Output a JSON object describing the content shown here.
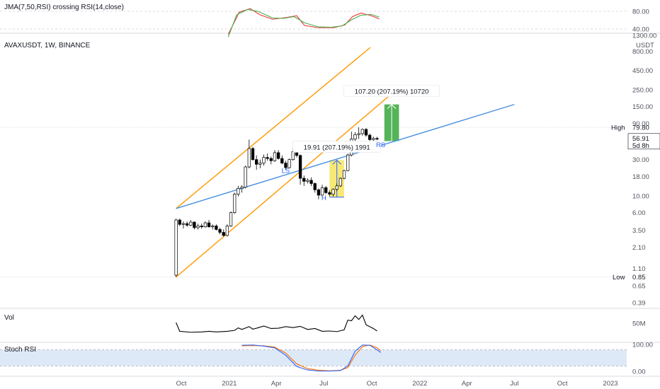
{
  "chart_data": {
    "type": "candlestick",
    "symbol_header": "AVAXUSDT, 1W, BINANCE",
    "price_scale": "log",
    "currency_label": "USDT",
    "price_ticks": [
      "1300.00",
      "800.00",
      "450.00",
      "250.00",
      "150.00",
      "90.00",
      "50.00",
      "30.00",
      "18.00",
      "10.00",
      "6.00",
      "3.50",
      "2.10",
      "1.10",
      "0.65",
      "0.39"
    ],
    "price_tick_values": [
      1300,
      800,
      450,
      250,
      150,
      90,
      50,
      30,
      18,
      10,
      6,
      3.5,
      2.1,
      1.1,
      0.65,
      0.39
    ],
    "x_ticks": [
      "Oct",
      "2021",
      "Apr",
      "Jul",
      "Oct",
      "2022",
      "Apr",
      "Jul",
      "Oct",
      "2023"
    ],
    "x_tick_dates": [
      "2020-10-01",
      "2021-01-01",
      "2021-04-01",
      "2021-07-01",
      "2021-10-01",
      "2022-01-01",
      "2022-04-01",
      "2022-07-01",
      "2022-10-01",
      "2023-01-01"
    ],
    "high": {
      "label": "High",
      "value": "79.80"
    },
    "low": {
      "label": "Low",
      "value": "0.85"
    },
    "last_price": {
      "value": "56.91",
      "countdown": "5d 8h",
      "color": "#131722"
    },
    "annotations": {
      "measure_1": {
        "text": "19.91 (207.19%) 1991",
        "color": "#f5e24a"
      },
      "measure_2": {
        "text": "107.20 (207.19%) 10720",
        "color": "#4caf50"
      },
      "labels": [
        "LS",
        "H",
        "RS"
      ]
    },
    "candles": [
      {
        "date": "2020-09-21",
        "o": 0.9,
        "h": 5.0,
        "l": 0.85,
        "c": 4.8
      },
      {
        "date": "2020-09-28",
        "o": 4.8,
        "h": 5.0,
        "l": 4.0,
        "c": 4.2
      },
      {
        "date": "2020-10-05",
        "o": 4.2,
        "h": 4.6,
        "l": 3.7,
        "c": 4.3
      },
      {
        "date": "2020-10-12",
        "o": 4.3,
        "h": 4.6,
        "l": 3.9,
        "c": 4.1
      },
      {
        "date": "2020-10-19",
        "o": 4.1,
        "h": 4.8,
        "l": 4.0,
        "c": 4.5
      },
      {
        "date": "2020-10-26",
        "o": 4.5,
        "h": 4.6,
        "l": 3.6,
        "c": 3.8
      },
      {
        "date": "2020-11-02",
        "o": 3.8,
        "h": 4.3,
        "l": 3.6,
        "c": 4.0
      },
      {
        "date": "2020-11-09",
        "o": 4.0,
        "h": 4.3,
        "l": 3.7,
        "c": 3.9
      },
      {
        "date": "2020-11-16",
        "o": 3.9,
        "h": 4.6,
        "l": 3.8,
        "c": 4.4
      },
      {
        "date": "2020-11-23",
        "o": 4.4,
        "h": 4.8,
        "l": 3.8,
        "c": 3.9
      },
      {
        "date": "2020-11-30",
        "o": 3.9,
        "h": 4.2,
        "l": 3.6,
        "c": 4.0
      },
      {
        "date": "2020-12-07",
        "o": 4.0,
        "h": 4.2,
        "l": 3.5,
        "c": 3.6
      },
      {
        "date": "2020-12-14",
        "o": 3.6,
        "h": 3.8,
        "l": 3.1,
        "c": 3.3
      },
      {
        "date": "2020-12-21",
        "o": 3.3,
        "h": 3.6,
        "l": 2.9,
        "c": 3.0
      },
      {
        "date": "2020-12-28",
        "o": 3.0,
        "h": 4.2,
        "l": 2.9,
        "c": 4.0
      },
      {
        "date": "2021-01-04",
        "o": 4.0,
        "h": 6.2,
        "l": 3.9,
        "c": 6.0
      },
      {
        "date": "2021-01-11",
        "o": 6.0,
        "h": 11.0,
        "l": 5.8,
        "c": 10.5
      },
      {
        "date": "2021-01-18",
        "o": 10.5,
        "h": 13.5,
        "l": 9.8,
        "c": 12.5
      },
      {
        "date": "2021-01-25",
        "o": 12.5,
        "h": 13.8,
        "l": 11.0,
        "c": 13.0
      },
      {
        "date": "2021-02-01",
        "o": 13.0,
        "h": 25.0,
        "l": 12.5,
        "c": 24.0
      },
      {
        "date": "2021-02-08",
        "o": 24.0,
        "h": 55.0,
        "l": 23.0,
        "c": 42.0
      },
      {
        "date": "2021-02-15",
        "o": 42.0,
        "h": 44.0,
        "l": 29.0,
        "c": 30.0
      },
      {
        "date": "2021-02-22",
        "o": 30.0,
        "h": 34.0,
        "l": 22.0,
        "c": 26.0
      },
      {
        "date": "2021-03-01",
        "o": 26.0,
        "h": 30.0,
        "l": 23.0,
        "c": 27.0
      },
      {
        "date": "2021-03-08",
        "o": 27.0,
        "h": 35.0,
        "l": 25.0,
        "c": 32.0
      },
      {
        "date": "2021-03-15",
        "o": 32.0,
        "h": 36.0,
        "l": 29.0,
        "c": 31.0
      },
      {
        "date": "2021-03-22",
        "o": 31.0,
        "h": 33.0,
        "l": 26.0,
        "c": 29.0
      },
      {
        "date": "2021-03-29",
        "o": 29.0,
        "h": 40.0,
        "l": 28.0,
        "c": 37.0
      },
      {
        "date": "2021-04-05",
        "o": 37.0,
        "h": 40.0,
        "l": 30.0,
        "c": 31.0
      },
      {
        "date": "2021-04-12",
        "o": 31.0,
        "h": 34.0,
        "l": 26.0,
        "c": 27.0
      },
      {
        "date": "2021-04-19",
        "o": 27.0,
        "h": 29.0,
        "l": 22.0,
        "c": 23.5
      },
      {
        "date": "2021-04-26",
        "o": 23.5,
        "h": 31.0,
        "l": 23.0,
        "c": 30.0
      },
      {
        "date": "2021-05-03",
        "o": 30.0,
        "h": 42.0,
        "l": 29.0,
        "c": 38.0
      },
      {
        "date": "2021-05-10",
        "o": 38.0,
        "h": 42.0,
        "l": 32.0,
        "c": 34.0
      },
      {
        "date": "2021-05-17",
        "o": 34.0,
        "h": 35.0,
        "l": 14.0,
        "c": 17.0
      },
      {
        "date": "2021-05-24",
        "o": 17.0,
        "h": 18.5,
        "l": 13.5,
        "c": 15.5
      },
      {
        "date": "2021-05-31",
        "o": 15.5,
        "h": 17.0,
        "l": 14.5,
        "c": 16.0
      },
      {
        "date": "2021-06-07",
        "o": 16.0,
        "h": 17.5,
        "l": 13.5,
        "c": 14.5
      },
      {
        "date": "2021-06-14",
        "o": 14.5,
        "h": 15.0,
        "l": 11.0,
        "c": 12.0
      },
      {
        "date": "2021-06-21",
        "o": 12.0,
        "h": 12.5,
        "l": 9.0,
        "c": 10.2
      },
      {
        "date": "2021-06-28",
        "o": 10.2,
        "h": 14.0,
        "l": 9.5,
        "c": 12.8
      },
      {
        "date": "2021-07-05",
        "o": 12.8,
        "h": 13.5,
        "l": 10.5,
        "c": 11.0
      },
      {
        "date": "2021-07-12",
        "o": 11.0,
        "h": 11.8,
        "l": 9.8,
        "c": 10.5
      },
      {
        "date": "2021-07-19",
        "o": 10.5,
        "h": 12.5,
        "l": 9.8,
        "c": 12.2
      },
      {
        "date": "2021-07-26",
        "o": 12.2,
        "h": 14.5,
        "l": 11.5,
        "c": 13.5
      },
      {
        "date": "2021-08-02",
        "o": 13.5,
        "h": 17.5,
        "l": 13.0,
        "c": 17.0
      },
      {
        "date": "2021-08-09",
        "o": 17.0,
        "h": 22.0,
        "l": 16.5,
        "c": 21.5
      },
      {
        "date": "2021-08-16",
        "o": 21.5,
        "h": 36.0,
        "l": 21.0,
        "c": 34.5
      },
      {
        "date": "2021-08-23",
        "o": 34.5,
        "h": 70.0,
        "l": 33.0,
        "c": 56.0
      },
      {
        "date": "2021-08-30",
        "o": 56.0,
        "h": 69.0,
        "l": 50.0,
        "c": 64.0
      },
      {
        "date": "2021-09-06",
        "o": 64.0,
        "h": 79.8,
        "l": 56.0,
        "c": 66.0
      },
      {
        "date": "2021-09-13",
        "o": 66.0,
        "h": 77.0,
        "l": 62.0,
        "c": 75.0
      },
      {
        "date": "2021-09-20",
        "o": 75.0,
        "h": 78.0,
        "l": 60.0,
        "c": 63.0
      },
      {
        "date": "2021-09-27",
        "o": 63.0,
        "h": 66.0,
        "l": 52.0,
        "c": 55.0
      },
      {
        "date": "2021-10-04",
        "o": 55.0,
        "h": 60.0,
        "l": 53.0,
        "c": 57.0
      },
      {
        "date": "2021-10-11",
        "o": 57.0,
        "h": 60.0,
        "l": 54.0,
        "c": 56.91
      }
    ],
    "channel_lower": [
      {
        "date": "2020-09-21",
        "price": 0.85
      },
      {
        "date": "2021-11-20",
        "price": 260.0
      }
    ],
    "channel_upper": [
      {
        "date": "2020-09-21",
        "price": 6.8
      },
      {
        "date": "2021-09-28",
        "price": 900.0
      }
    ],
    "neckline": [
      {
        "date": "2020-09-21",
        "price": 6.8
      },
      {
        "date": "2022-07-01",
        "price": 160.0
      }
    ],
    "measure_1_box": {
      "date_start": "2021-07-12",
      "date_end": "2021-08-09",
      "price_low": 9.6,
      "price_high": 29.5
    },
    "measure_2_box": {
      "date_start": "2021-10-25",
      "date_end": "2021-11-22",
      "price_low": 52.0,
      "price_high": 160.0
    },
    "label_positions": {
      "LS": {
        "date": "2021-04-19",
        "price": 20.0
      },
      "H": {
        "date": "2021-07-01",
        "price": 8.8
      },
      "RS": {
        "date": "2021-10-18",
        "price": 44.0
      }
    },
    "jma_rsi": {
      "title": "JMA(7,50,RSI) crossing RSI(14,close)",
      "ticks": [
        "80.00",
        "40.00"
      ],
      "tick_values": [
        80,
        40
      ],
      "jma": [
        {
          "date": "2020-12-30",
          "v": 22
        },
        {
          "date": "2021-01-15",
          "v": 72
        },
        {
          "date": "2021-02-05",
          "v": 84
        },
        {
          "date": "2021-02-25",
          "v": 80
        },
        {
          "date": "2021-03-25",
          "v": 65
        },
        {
          "date": "2021-04-15",
          "v": 64
        },
        {
          "date": "2021-05-05",
          "v": 68
        },
        {
          "date": "2021-05-25",
          "v": 54
        },
        {
          "date": "2021-06-20",
          "v": 45
        },
        {
          "date": "2021-07-15",
          "v": 44
        },
        {
          "date": "2021-08-05",
          "v": 47
        },
        {
          "date": "2021-08-25",
          "v": 62
        },
        {
          "date": "2021-09-10",
          "v": 71
        },
        {
          "date": "2021-09-30",
          "v": 73
        },
        {
          "date": "2021-10-15",
          "v": 67
        }
      ],
      "rsi": [
        {
          "date": "2020-12-30",
          "v": 28
        },
        {
          "date": "2021-01-20",
          "v": 78
        },
        {
          "date": "2021-02-10",
          "v": 86
        },
        {
          "date": "2021-03-01",
          "v": 72
        },
        {
          "date": "2021-03-25",
          "v": 62
        },
        {
          "date": "2021-04-20",
          "v": 66
        },
        {
          "date": "2021-05-10",
          "v": 70
        },
        {
          "date": "2021-05-25",
          "v": 48
        },
        {
          "date": "2021-06-20",
          "v": 43
        },
        {
          "date": "2021-07-20",
          "v": 43
        },
        {
          "date": "2021-08-10",
          "v": 49
        },
        {
          "date": "2021-08-25",
          "v": 68
        },
        {
          "date": "2021-09-10",
          "v": 76
        },
        {
          "date": "2021-09-30",
          "v": 70
        },
        {
          "date": "2021-10-15",
          "v": 63
        }
      ],
      "jma_color": "#4caf50",
      "rsi_color": "#e53935"
    },
    "volume": {
      "title": "Vol",
      "ticks": [
        "50M"
      ],
      "tick_values": [
        50
      ],
      "color": "#000000",
      "values": [
        {
          "date": "2020-09-21",
          "v": 52
        },
        {
          "date": "2020-09-28",
          "v": 24
        },
        {
          "date": "2020-10-19",
          "v": 21
        },
        {
          "date": "2020-11-09",
          "v": 22
        },
        {
          "date": "2020-11-23",
          "v": 24
        },
        {
          "date": "2020-12-07",
          "v": 22
        },
        {
          "date": "2020-12-28",
          "v": 24
        },
        {
          "date": "2021-01-11",
          "v": 27
        },
        {
          "date": "2021-01-18",
          "v": 35
        },
        {
          "date": "2021-01-25",
          "v": 30
        },
        {
          "date": "2021-02-08",
          "v": 39
        },
        {
          "date": "2021-02-15",
          "v": 31
        },
        {
          "date": "2021-02-22",
          "v": 34
        },
        {
          "date": "2021-03-08",
          "v": 41
        },
        {
          "date": "2021-03-22",
          "v": 33
        },
        {
          "date": "2021-04-05",
          "v": 34
        },
        {
          "date": "2021-04-19",
          "v": 39
        },
        {
          "date": "2021-05-03",
          "v": 36
        },
        {
          "date": "2021-05-17",
          "v": 40
        },
        {
          "date": "2021-05-31",
          "v": 30
        },
        {
          "date": "2021-06-14",
          "v": 33
        },
        {
          "date": "2021-06-28",
          "v": 24
        },
        {
          "date": "2021-07-12",
          "v": 25
        },
        {
          "date": "2021-07-26",
          "v": 23
        },
        {
          "date": "2021-08-09",
          "v": 29
        },
        {
          "date": "2021-08-16",
          "v": 60
        },
        {
          "date": "2021-08-23",
          "v": 58
        },
        {
          "date": "2021-08-30",
          "v": 74
        },
        {
          "date": "2021-09-06",
          "v": 62
        },
        {
          "date": "2021-09-13",
          "v": 76
        },
        {
          "date": "2021-09-20",
          "v": 45
        },
        {
          "date": "2021-09-27",
          "v": 39
        },
        {
          "date": "2021-10-04",
          "v": 33
        },
        {
          "date": "2021-10-11",
          "v": 25
        }
      ]
    },
    "stoch_rsi": {
      "title": "Stoch RSI",
      "ticks": [
        "100.00",
        "0.00"
      ],
      "tick_values": [
        100,
        0
      ],
      "band": [
        20,
        80
      ],
      "band_color": "#d6e4f5",
      "k_color": "#2962ff",
      "d_color": "#ff6d00",
      "k": [
        {
          "date": "2021-01-25",
          "v": 97
        },
        {
          "date": "2021-02-15",
          "v": 98
        },
        {
          "date": "2021-03-08",
          "v": 94
        },
        {
          "date": "2021-03-29",
          "v": 87
        },
        {
          "date": "2021-04-19",
          "v": 60
        },
        {
          "date": "2021-05-10",
          "v": 18
        },
        {
          "date": "2021-05-31",
          "v": 5
        },
        {
          "date": "2021-06-21",
          "v": 1
        },
        {
          "date": "2021-07-12",
          "v": 1
        },
        {
          "date": "2021-08-02",
          "v": 3
        },
        {
          "date": "2021-08-16",
          "v": 20
        },
        {
          "date": "2021-08-30",
          "v": 75
        },
        {
          "date": "2021-09-13",
          "v": 98
        },
        {
          "date": "2021-09-27",
          "v": 97
        },
        {
          "date": "2021-10-11",
          "v": 80
        },
        {
          "date": "2021-10-18",
          "v": 70
        }
      ],
      "d": [
        {
          "date": "2021-01-25",
          "v": 95
        },
        {
          "date": "2021-02-15",
          "v": 96
        },
        {
          "date": "2021-03-08",
          "v": 95
        },
        {
          "date": "2021-03-29",
          "v": 90
        },
        {
          "date": "2021-04-19",
          "v": 68
        },
        {
          "date": "2021-05-10",
          "v": 28
        },
        {
          "date": "2021-05-31",
          "v": 10
        },
        {
          "date": "2021-06-21",
          "v": 4
        },
        {
          "date": "2021-07-12",
          "v": 2
        },
        {
          "date": "2021-08-02",
          "v": 4
        },
        {
          "date": "2021-08-16",
          "v": 14
        },
        {
          "date": "2021-08-30",
          "v": 60
        },
        {
          "date": "2021-09-13",
          "v": 92
        },
        {
          "date": "2021-09-27",
          "v": 98
        },
        {
          "date": "2021-10-11",
          "v": 88
        },
        {
          "date": "2021-10-18",
          "v": 76
        }
      ]
    },
    "colors": {
      "channel": "#ff9800",
      "neckline": "#4a90e2",
      "candle": "#000000",
      "label_text": "#2962ff"
    }
  }
}
